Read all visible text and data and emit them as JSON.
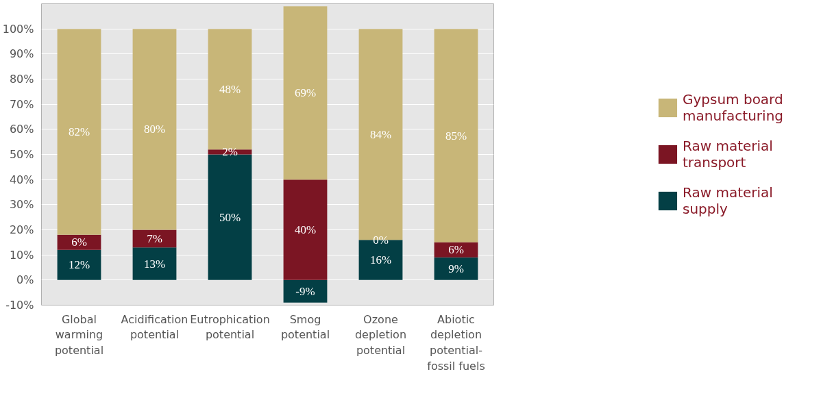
{
  "chart_data": {
    "type": "bar",
    "stacked": true,
    "categories": [
      "Global warming potential",
      "Acidification potential",
      "Eutrophication potential",
      "Smog potential",
      "Ozone depletion potential",
      "Abiotic depletion potential-fossil fuels"
    ],
    "series": [
      {
        "name": "Raw material supply",
        "color": "#033f45",
        "values": [
          12,
          13,
          50,
          -9,
          16,
          9
        ]
      },
      {
        "name": "Raw material transport",
        "color": "#7b1523",
        "values": [
          6,
          7,
          2,
          40,
          0,
          6
        ]
      },
      {
        "name": "Gypsum board manufacturing",
        "color": "#c8b678",
        "values": [
          82,
          80,
          48,
          69,
          84,
          85
        ]
      }
    ],
    "ylim": [
      -10,
      110
    ],
    "yticks": [
      {
        "value": -10,
        "label": "-10%"
      },
      {
        "value": 0,
        "label": "0%"
      },
      {
        "value": 10,
        "label": "10%"
      },
      {
        "value": 20,
        "label": "20%"
      },
      {
        "value": 30,
        "label": "30%"
      },
      {
        "value": 40,
        "label": "40%"
      },
      {
        "value": 50,
        "label": "50%"
      },
      {
        "value": 60,
        "label": "60%"
      },
      {
        "value": 70,
        "label": "70%"
      },
      {
        "value": 80,
        "label": "80%"
      },
      {
        "value": 90,
        "label": "90%"
      },
      {
        "value": 100,
        "label": "100%"
      }
    ],
    "value_labels": [
      [
        "12%",
        "13%",
        "50%",
        "-9%",
        "16%",
        "9%"
      ],
      [
        "6%",
        "7%",
        "2%",
        "40%",
        "0%",
        "6%"
      ],
      [
        "82%",
        "80%",
        "48%",
        "69%",
        "84%",
        "85%"
      ]
    ],
    "grid": "y",
    "legend": "right"
  }
}
